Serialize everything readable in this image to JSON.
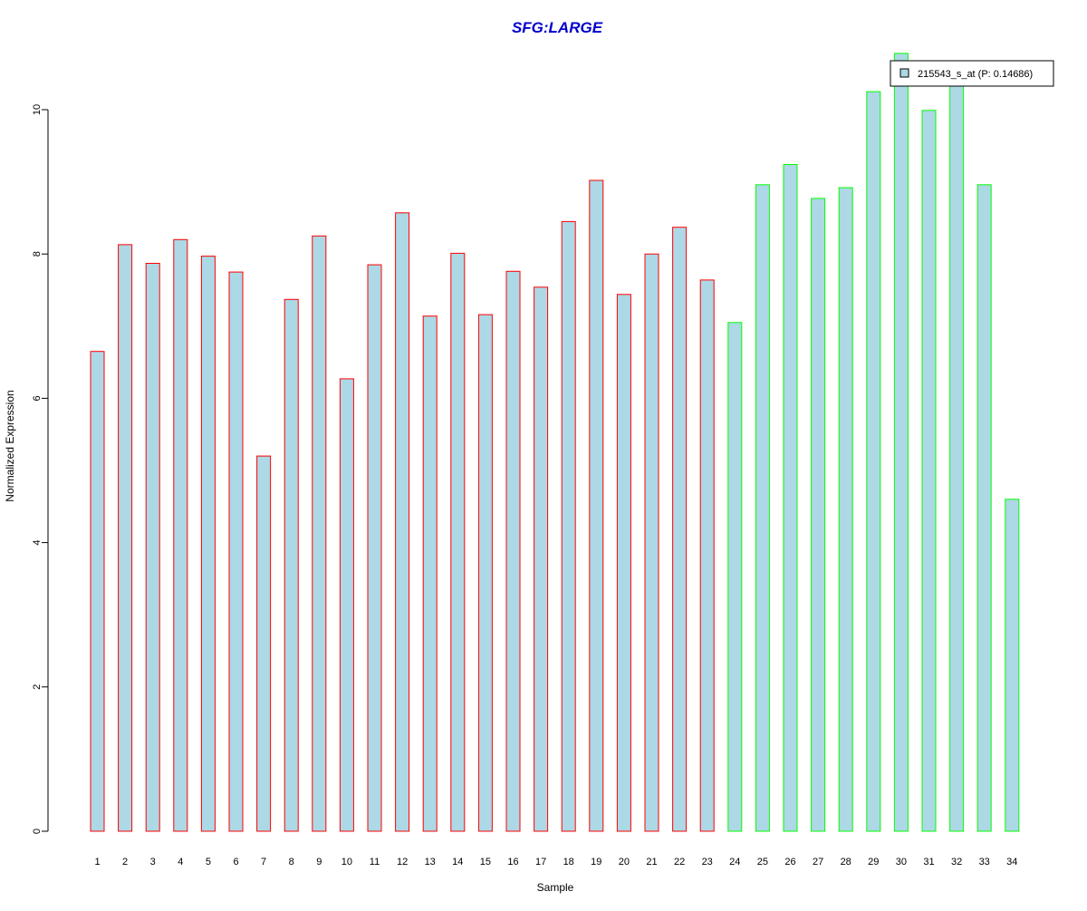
{
  "chart_data": {
    "type": "bar",
    "title": "SFG:LARGE",
    "xlabel": "Sample",
    "ylabel": "Normalized Expression",
    "ylim": [
      0,
      10.8
    ],
    "yticks": [
      0,
      2,
      4,
      6,
      8,
      10
    ],
    "categories": [
      "1",
      "2",
      "3",
      "4",
      "5",
      "6",
      "7",
      "8",
      "9",
      "10",
      "11",
      "12",
      "13",
      "14",
      "15",
      "16",
      "17",
      "18",
      "19",
      "20",
      "21",
      "22",
      "23",
      "24",
      "25",
      "26",
      "27",
      "28",
      "29",
      "30",
      "31",
      "32",
      "33",
      "34"
    ],
    "series": [
      {
        "name": "215543_s_at (P: 0.14686)",
        "values": [
          6.65,
          8.13,
          7.87,
          8.2,
          7.97,
          7.75,
          5.2,
          7.37,
          8.25,
          6.27,
          7.85,
          8.57,
          7.14,
          8.01,
          7.16,
          7.76,
          7.54,
          8.45,
          9.02,
          7.44,
          8.0,
          8.37,
          7.64,
          7.05,
          8.96,
          9.24,
          8.77,
          8.92,
          10.25,
          10.78,
          9.99,
          10.37,
          8.96,
          4.6
        ]
      }
    ],
    "group_count_first": 23,
    "colors": {
      "bar_fill": "#add8e6",
      "border_group1": "#ff0000",
      "border_group2": "#00ff00",
      "title": "#0000cc"
    },
    "legend": {
      "label": "215543_s_at (P: 0.14686)",
      "placement": "top-right"
    }
  }
}
